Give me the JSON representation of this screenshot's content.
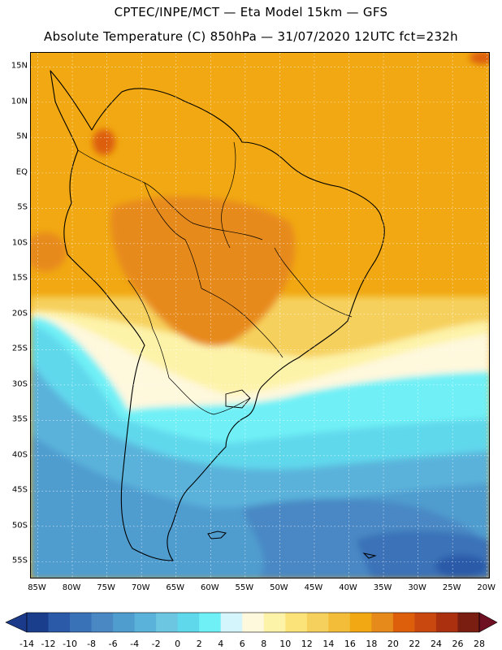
{
  "header": {
    "title_line1": "CPTEC/INPE/MCT —  Eta Model 15km — GFS",
    "title_line2": "Absolute Temperature (C) 850hPa — 31/07/2020 12UTC fct=232h"
  },
  "map": {
    "lat_labels": [
      "15N",
      "10N",
      "5N",
      "EQ",
      "5S",
      "10S",
      "15S",
      "20S",
      "25S",
      "30S",
      "35S",
      "40S",
      "45S",
      "50S",
      "55S"
    ],
    "lon_labels": [
      "85W",
      "80W",
      "75W",
      "70W",
      "65W",
      "60W",
      "55W",
      "50W",
      "45W",
      "40W",
      "35W",
      "30W",
      "25W",
      "20W"
    ],
    "lat_range": [
      17,
      -57.5
    ],
    "lon_range": [
      -86,
      -19.5
    ]
  },
  "colorbar": {
    "labels": [
      "-14",
      "-12",
      "-10",
      "-8",
      "-6",
      "-4",
      "-2",
      "0",
      "2",
      "4",
      "6",
      "8",
      "10",
      "12",
      "14",
      "16",
      "18",
      "20",
      "22",
      "24",
      "26",
      "28"
    ],
    "colors": [
      "#1b3e8c",
      "#2a5aa8",
      "#3a72b8",
      "#4a88c4",
      "#4f9ccf",
      "#5ab2da",
      "#6cc6e2",
      "#60d8ec",
      "#6ff0f6",
      "#d3f5fb",
      "#fef8dd",
      "#fdf3a8",
      "#fbe37a",
      "#f6d05c",
      "#f3bd3a",
      "#f1a812",
      "#e78a1c",
      "#dd5f0c",
      "#c84810",
      "#aa3010",
      "#7a1e12"
    ],
    "under_color": "#1b3a8a",
    "over_color": "#6e0f22"
  }
}
